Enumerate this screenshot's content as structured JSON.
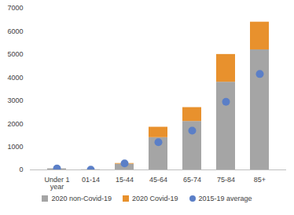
{
  "chart_data": {
    "type": "bar",
    "stacked": true,
    "grid": false,
    "categories": [
      "Under 1 year",
      "01-14",
      "15-44",
      "45-64",
      "65-74",
      "75-84",
      "85+"
    ],
    "series": [
      {
        "name": "2020 non-Covid-19",
        "type": "bar",
        "color": "#a5a5a5",
        "values": [
          50,
          10,
          250,
          1400,
          2100,
          3800,
          5200
        ]
      },
      {
        "name": "2020 Covid-19",
        "type": "bar",
        "color": "#e8912d",
        "values": [
          0,
          0,
          30,
          450,
          600,
          1200,
          1200
        ]
      },
      {
        "name": "2015-19 average",
        "type": "scatter",
        "marker": "circle",
        "color": "#5b7fc7",
        "values": [
          60,
          10,
          280,
          1200,
          1700,
          2950,
          4150
        ]
      }
    ],
    "ylim": [
      0,
      7000
    ],
    "yticks": [
      0,
      1000,
      2000,
      3000,
      4000,
      5000,
      6000,
      7000
    ]
  }
}
